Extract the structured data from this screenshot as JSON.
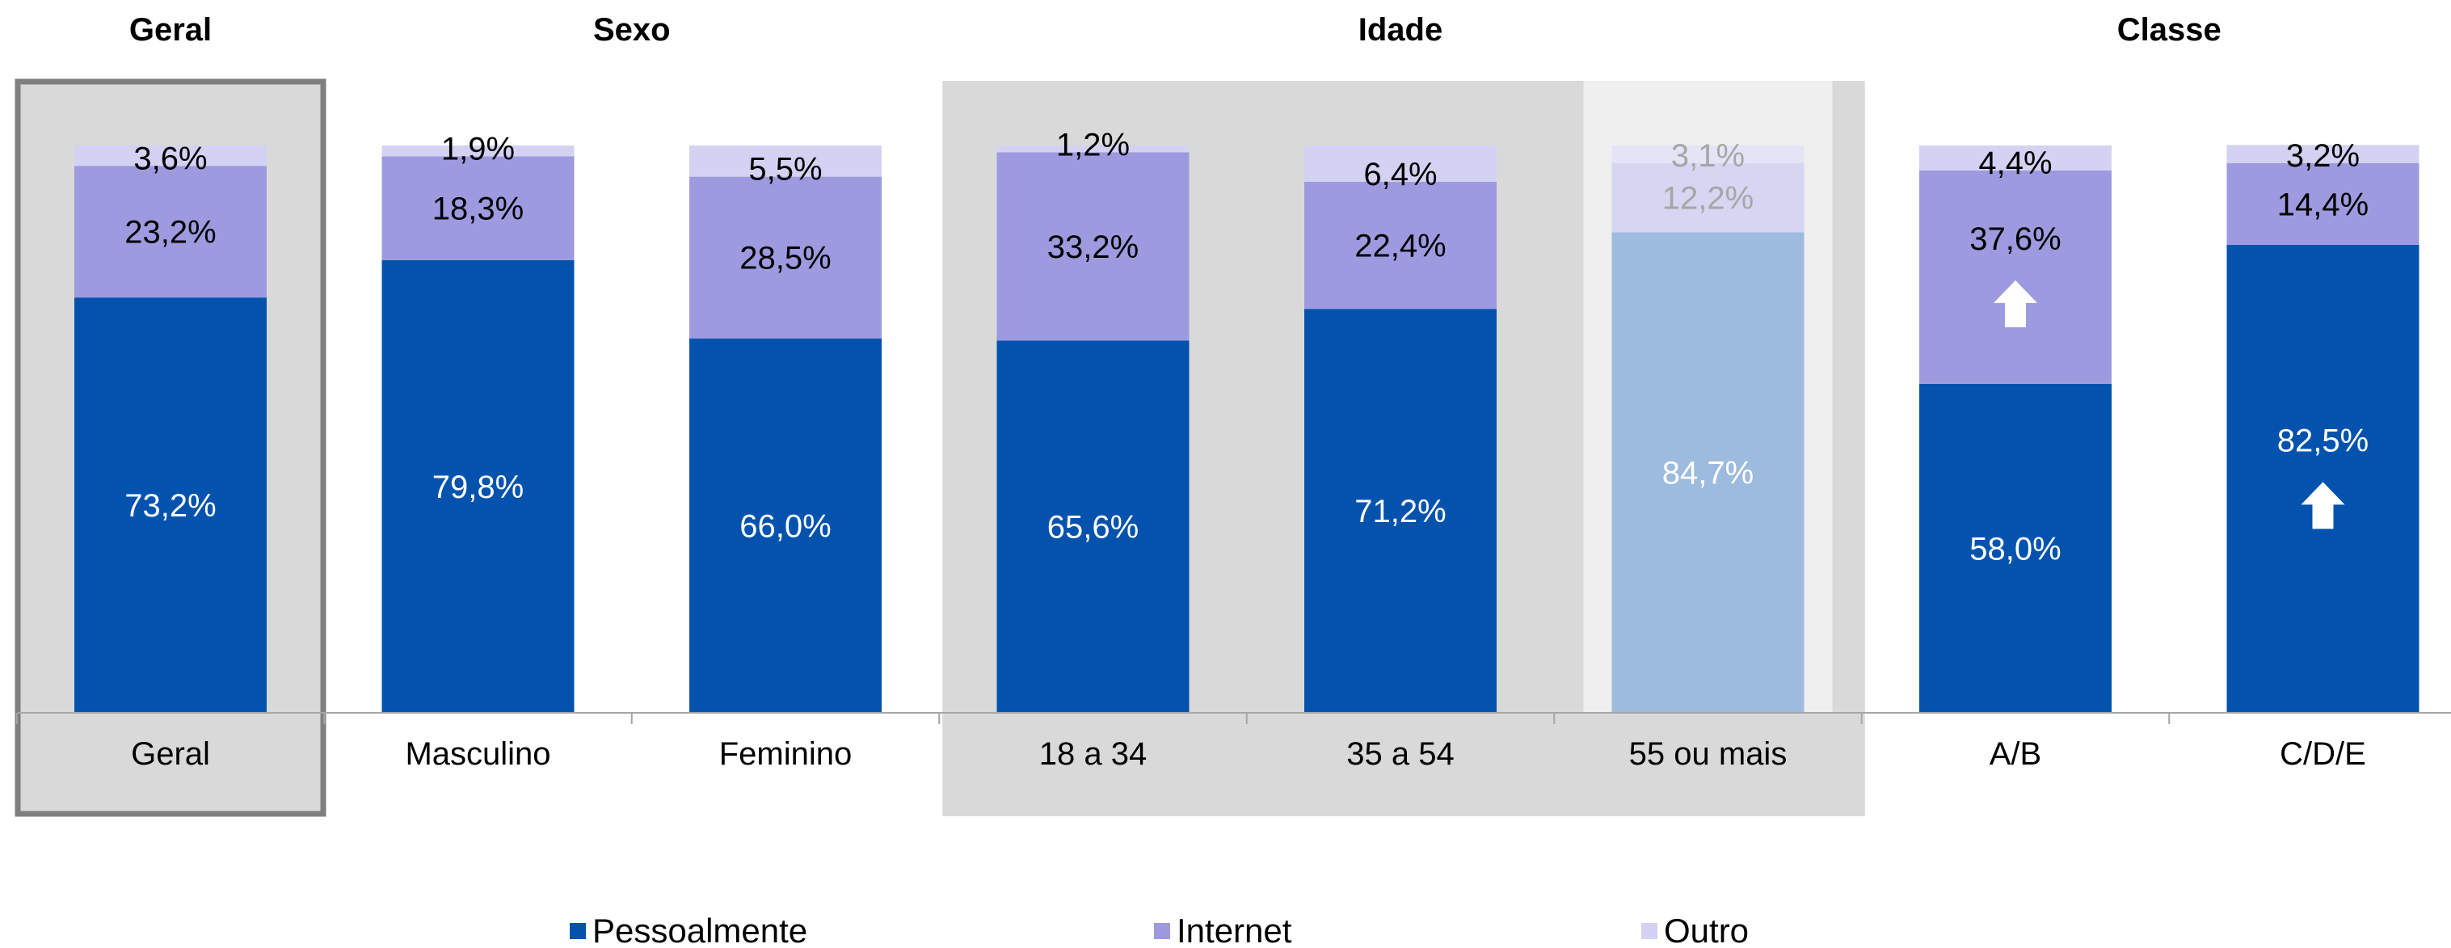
{
  "chart_data": {
    "type": "bar",
    "stacked": true,
    "ylim": [
      0,
      100
    ],
    "groups": [
      {
        "title": "Geral"
      },
      {
        "title": "Sexo"
      },
      {
        "title": "Idade"
      },
      {
        "title": "Classe"
      }
    ],
    "categories": [
      "Geral",
      "Masculino",
      "Feminino",
      "18 a 34",
      "35 a 54",
      "55 ou mais",
      "A/B",
      "C/D/E"
    ],
    "category_group": [
      0,
      1,
      1,
      2,
      2,
      2,
      3,
      3
    ],
    "series": [
      {
        "name": "Pessoalmente",
        "color": "#0353AE",
        "values": [
          73.2,
          79.8,
          66.0,
          65.6,
          71.2,
          84.7,
          58.0,
          82.5
        ],
        "labels": [
          "73,2%",
          "79,8%",
          "66,0%",
          "65,6%",
          "71,2%",
          "84,7%",
          "58,0%",
          "82,5%"
        ]
      },
      {
        "name": "Internet",
        "color": "#9D9ADF",
        "values": [
          23.2,
          18.3,
          28.5,
          33.2,
          22.4,
          12.2,
          37.6,
          14.4
        ],
        "labels": [
          "23,2%",
          "18,3%",
          "28,5%",
          "33,2%",
          "22,4%",
          "12,2%",
          "37,6%",
          "14,4%"
        ]
      },
      {
        "name": "Outro",
        "color": "#D3D2F2",
        "values": [
          3.6,
          1.9,
          5.5,
          1.2,
          6.4,
          3.1,
          4.4,
          3.2
        ],
        "labels": [
          "3,6%",
          "1,9%",
          "5,5%",
          "1,2%",
          "6,4%",
          "3,1%",
          "4,4%",
          "3,2%"
        ]
      }
    ],
    "faded_categories": [
      "55 ou mais"
    ],
    "highlights": [
      {
        "category": "A/B",
        "series": "Internet",
        "icon": "arrow-up-icon"
      },
      {
        "category": "C/D/E",
        "series": "Pessoalmente",
        "icon": "arrow-up-icon"
      }
    ],
    "legend": {
      "position": "bottom",
      "items": [
        "Pessoalmente",
        "Internet",
        "Outro"
      ]
    },
    "grid": false
  }
}
